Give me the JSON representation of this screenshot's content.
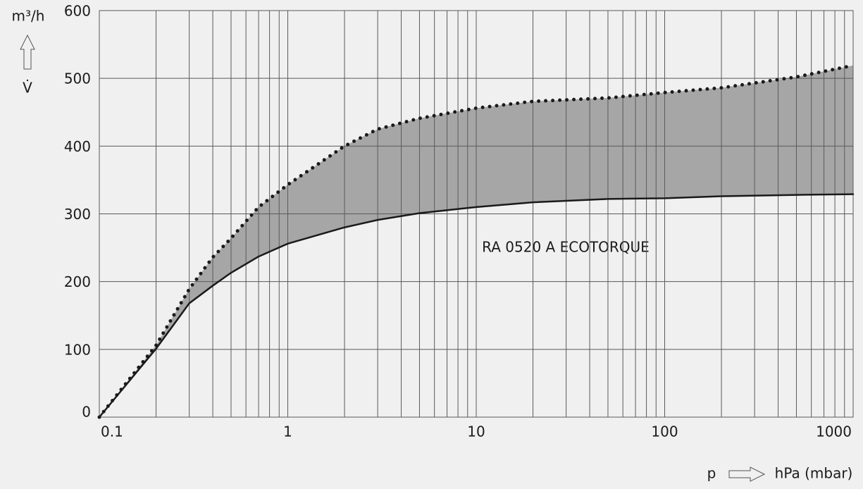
{
  "chart_data": {
    "type": "line",
    "y_unit": "m³/h",
    "y_symbol": "V̇",
    "x_symbol": "p",
    "x_unit": "hPa (mbar)",
    "annotation": "RA 0520 A ECOTORQUE",
    "x": [
      0.1,
      0.2,
      0.3,
      0.4,
      0.5,
      0.7,
      1,
      2,
      3,
      5,
      10,
      20,
      50,
      100,
      200,
      500,
      1000
    ],
    "series": [
      {
        "color": "#1a1a1a",
        "style": "dotted",
        "values": [
          0,
          106,
          189,
          236,
          264,
          310,
          343,
          400,
          425,
          441,
          456,
          466,
          471,
          479,
          486,
          502,
          519
        ]
      },
      {
        "color": "#1a1a1a",
        "style": "solid",
        "values": [
          0,
          101,
          168,
          194,
          213,
          237,
          256,
          280,
          291,
          301,
          310,
          317,
          322,
          323,
          326,
          328,
          329
        ]
      }
    ],
    "band_color": "#a6a6a6",
    "xlim": [
      0.1,
      1000
    ],
    "xlog": true,
    "xticks": [
      0.1,
      1,
      10,
      100,
      1000
    ],
    "xminorticks": [
      0.2,
      0.3,
      0.4,
      0.5,
      0.6,
      0.7,
      0.8,
      0.9,
      2,
      3,
      4,
      5,
      6,
      7,
      8,
      9,
      20,
      30,
      40,
      50,
      60,
      70,
      80,
      90,
      200,
      300,
      400,
      500,
      600,
      700,
      800,
      900
    ],
    "ylim": [
      0,
      600
    ],
    "yticks": [
      0,
      100,
      200,
      300,
      400,
      500,
      600
    ],
    "grid": true
  }
}
